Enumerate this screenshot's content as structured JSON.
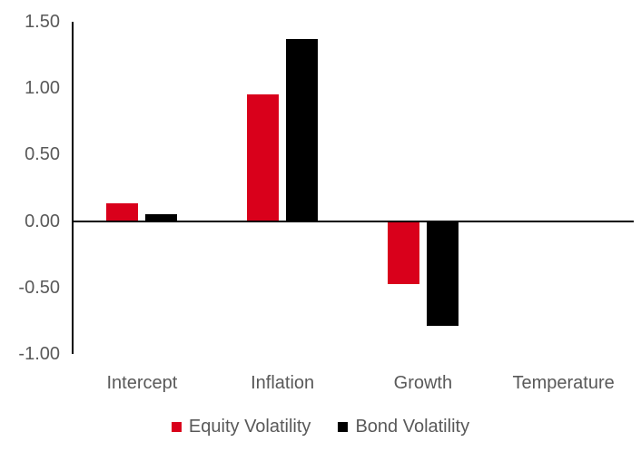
{
  "chart_data": {
    "type": "bar",
    "title": "",
    "xlabel": "",
    "ylabel": "",
    "categories": [
      "Intercept",
      "Inflation",
      "Growth",
      "Temperature"
    ],
    "series": [
      {
        "name": "Equity Volatility",
        "color": "#d9001b",
        "values": [
          0.13,
          0.95,
          -0.47,
          0.0
        ]
      },
      {
        "name": "Bond Volatility",
        "color": "#000000",
        "values": [
          0.05,
          1.37,
          -0.78,
          0.0
        ]
      }
    ],
    "ylim": [
      -1.0,
      1.5
    ],
    "yticks": [
      1.5,
      1.0,
      0.5,
      0.0,
      -0.5,
      -1.0
    ],
    "ytick_labels": [
      "1.50",
      "1.00",
      "0.50",
      "0.00",
      "-0.50",
      "-1.00"
    ],
    "grid": false,
    "legend_position": "bottom",
    "axis_color": "#000000",
    "label_color": "#595959",
    "background": "#ffffff"
  }
}
